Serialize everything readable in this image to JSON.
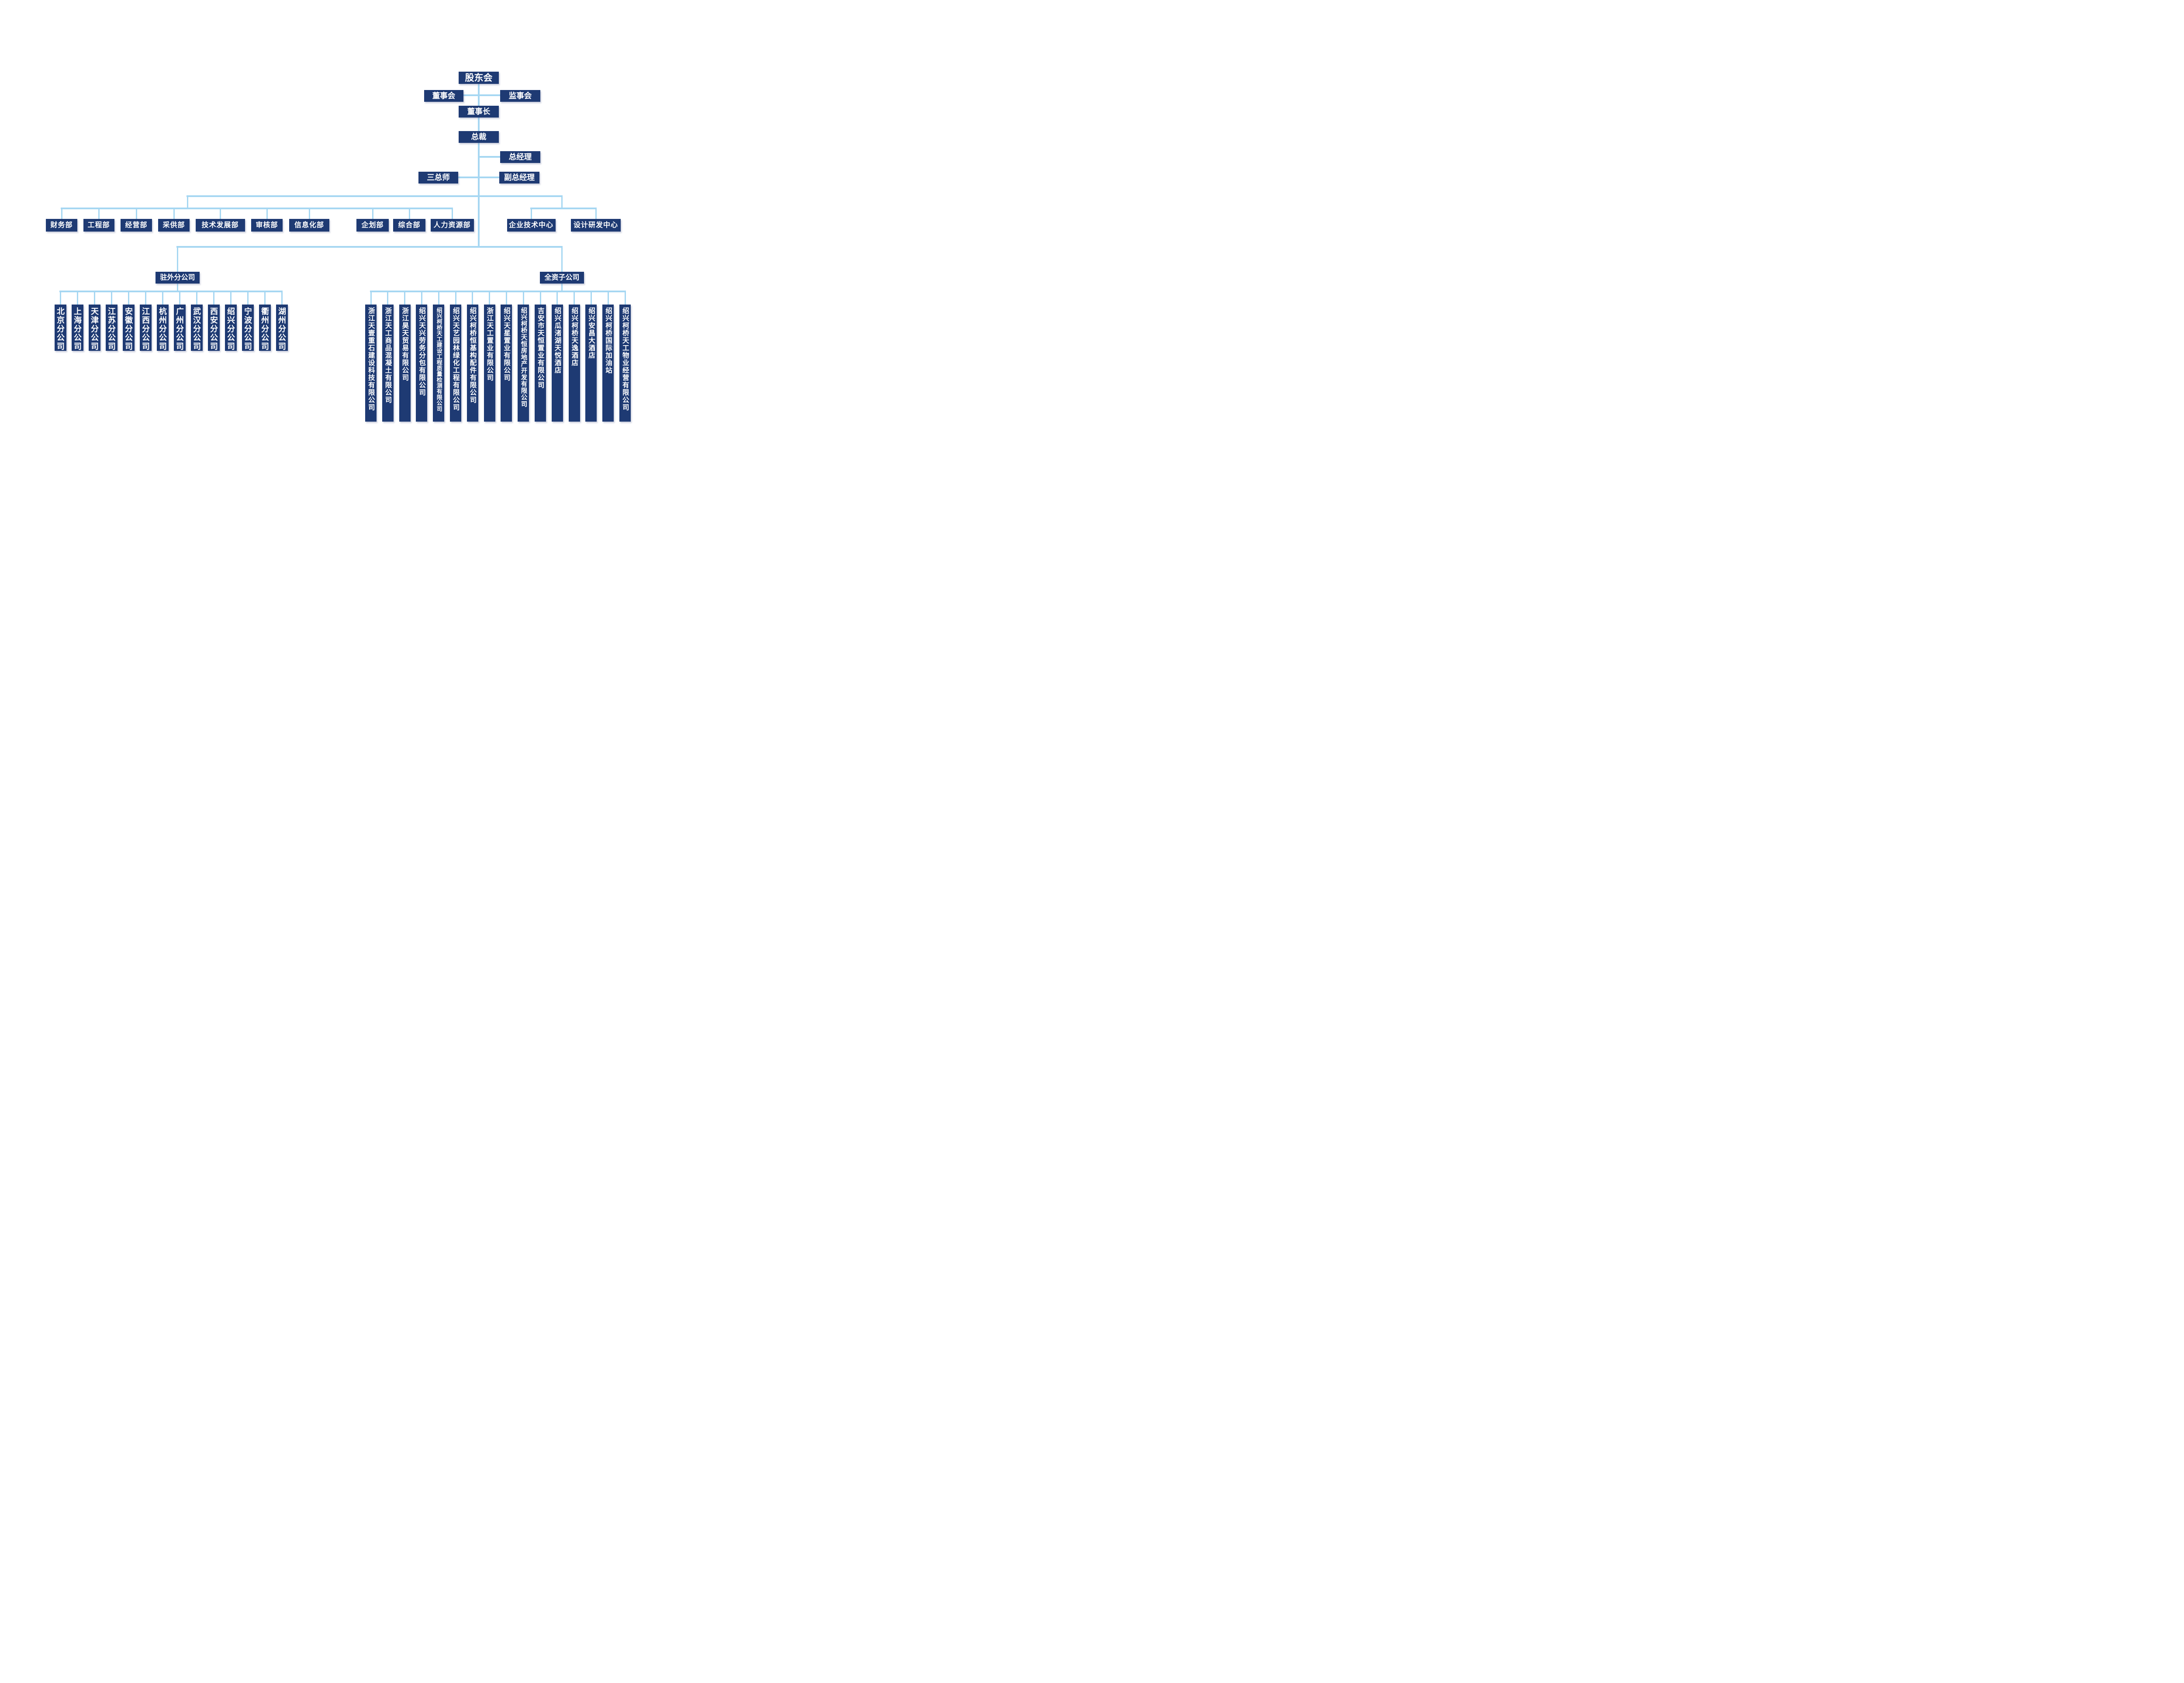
{
  "org": {
    "shareholders_meeting": "股东会",
    "board_of_directors": "董事会",
    "supervisory_board": "监事会",
    "chairman": "董事长",
    "president": "总裁",
    "general_manager": "总经理",
    "three_chief_engineers": "三总师",
    "deputy_general_manager": "副总经理",
    "branch_group_label": "驻外分公司",
    "subsidiary_group_label": "全资子公司",
    "departments": [
      "财务部",
      "工程部",
      "经营部",
      "采供部",
      "技术发展部",
      "审核部",
      "信息化部",
      "企划部",
      "综合部",
      "人力资源部",
      "企业技术中心",
      "设计研发中心"
    ],
    "branches": [
      "北京分公司",
      "上海分公司",
      "天津分公司",
      "江苏分公司",
      "安徽分公司",
      "江西分公司",
      "杭州分公司",
      "广州分公司",
      "武汉分公司",
      "西安分公司",
      "绍兴分公司",
      "宁波分公司",
      "衢州分公司",
      "湖州分公司"
    ],
    "subsidiaries": [
      "浙江天壹重石建设科技有限公司",
      "浙江天工商品混凝土有限公司",
      "浙江昊天贸易有限公司",
      "绍兴天兴劳务分包有限公司",
      "绍兴柯桥天工建设工程质量检测有限公司",
      "绍兴天艺园林绿化工程有限公司",
      "绍兴柯桥恒基构配件有限公司",
      "浙江天工置业有限公司",
      "绍兴天星置业有限公司",
      "绍兴柯桥天恒房地产开发有限公司",
      "吉安市天恒置业有限公司",
      "绍兴瓜渚湖天悦酒店",
      "绍兴柯桥天逸酒店",
      "绍兴安昌大酒店",
      "绍兴柯桥国际加油站",
      "绍兴柯桥天工物业经营有限公司"
    ]
  },
  "colors": {
    "node_fill": "#1e3a73",
    "node_text": "#ffffff",
    "connector": "#a6d7f2",
    "background": "#ffffff"
  }
}
